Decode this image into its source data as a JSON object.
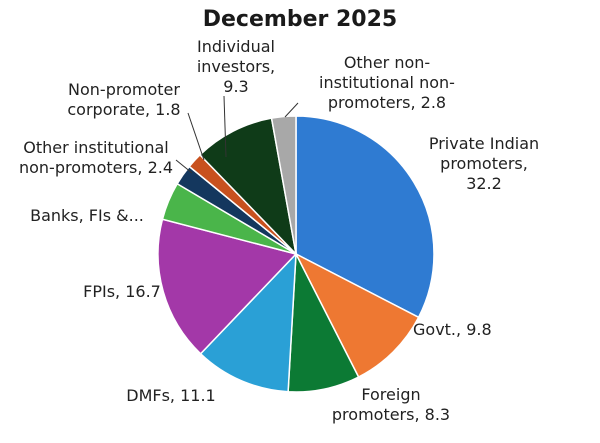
{
  "chart_data": {
    "type": "pie",
    "title": "December 2025",
    "start_angle_deg": 0,
    "direction": "clockwise",
    "slices": [
      {
        "name": "Private Indian promoters",
        "value": 32.2,
        "color": "#2f7bd2",
        "label_lines": [
          "Private Indian",
          "promoters,",
          "32.2"
        ]
      },
      {
        "name": "Govt.",
        "value": 9.8,
        "color": "#ee7832",
        "label_lines": [
          "Govt.,  9.8"
        ]
      },
      {
        "name": "Foreign promoters",
        "value": 8.3,
        "color": "#0c7a34",
        "label_lines": [
          "Foreign",
          "promoters,  8.3"
        ]
      },
      {
        "name": "DMFs",
        "value": 11.1,
        "color": "#2aa0d6",
        "label_lines": [
          "DMFs,  11.1"
        ]
      },
      {
        "name": "FPIs",
        "value": 16.7,
        "color": "#a338a8",
        "label_lines": [
          "FPIs,  16.7"
        ]
      },
      {
        "name": "Banks, FIs &...",
        "value": 4.4,
        "color": "#4ab54a",
        "label_lines": [
          "Banks, FIs &..."
        ]
      },
      {
        "name": "Other institutional non-promoters",
        "value": 2.4,
        "color": "#14375e",
        "label_lines": [
          "Other institutional",
          "non-promoters,  2.4"
        ]
      },
      {
        "name": "Non-promoter corporate",
        "value": 1.8,
        "color": "#c8511e",
        "label_lines": [
          "Non-promoter",
          "corporate,  1.8"
        ]
      },
      {
        "name": "Individual investors",
        "value": 9.3,
        "color": "#0f3b18",
        "label_lines": [
          "Individual",
          "investors,",
          "9.3"
        ]
      },
      {
        "name": "Other non-institutional non-promoters",
        "value": 2.8,
        "color": "#a8a8a8",
        "label_lines": [
          "Other non-",
          "institutional non-",
          "promoters,  2.8"
        ]
      }
    ]
  }
}
